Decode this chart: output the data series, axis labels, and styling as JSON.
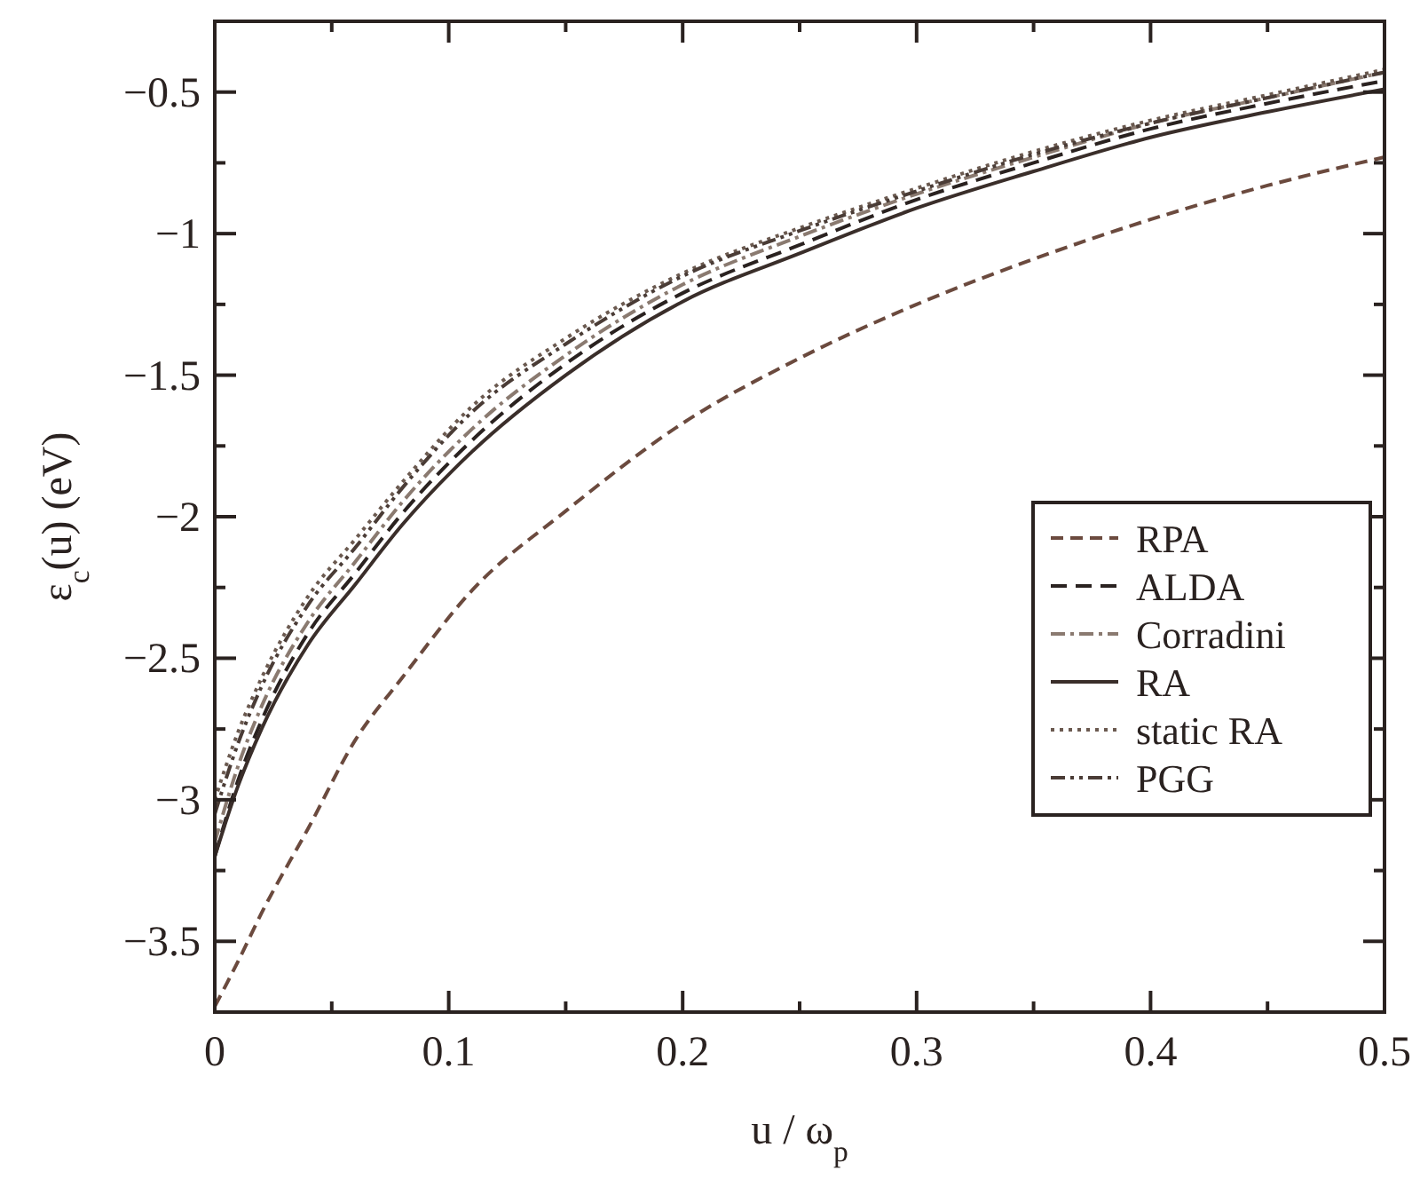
{
  "chart_data": {
    "type": "line",
    "xlabel": "u / ω$_{p}$",
    "ylabel": "ε$_{c}$(u)  (eV)",
    "x": [
      0,
      0.01,
      0.02,
      0.04,
      0.06,
      0.08,
      0.11,
      0.15,
      0.2,
      0.25,
      0.3,
      0.35,
      0.4,
      0.45,
      0.5
    ],
    "xlim": [
      0,
      0.5
    ],
    "ylim": [
      -3.75,
      -0.25
    ],
    "xticks": [
      0,
      {
        "value": 0.05,
        "label": null
      },
      0.1,
      {
        "value": 0.15,
        "label": null
      },
      0.2,
      {
        "value": 0.25,
        "label": null
      },
      0.3,
      {
        "value": 0.35,
        "label": null
      },
      0.4,
      {
        "value": 0.45,
        "label": null
      },
      0.5
    ],
    "yticks": [
      {
        "value": -3.75,
        "label": null
      },
      -3.5,
      {
        "value": -3.25,
        "label": null
      },
      -3,
      {
        "value": -2.75,
        "label": null
      },
      -2.5,
      {
        "value": -2.25,
        "label": null
      },
      -2,
      {
        "value": -1.75,
        "label": null
      },
      -1.5,
      {
        "value": -1.25,
        "label": null
      },
      -1,
      {
        "value": -0.75,
        "label": null
      },
      -0.5,
      {
        "value": -0.25,
        "label": null
      }
    ],
    "legend": "right",
    "grid": false,
    "series": [
      {
        "name": "RPA",
        "color": "#6b4a3e",
        "line_style": "dashed",
        "values": [
          -3.73,
          -3.57,
          -3.4,
          -3.1,
          -2.79,
          -2.57,
          -2.26,
          -1.98,
          -1.67,
          -1.44,
          -1.25,
          -1.09,
          -0.95,
          -0.83,
          -0.73
        ]
      },
      {
        "name": "ALDA",
        "color": "#2a2220",
        "line_style": "dashed",
        "values": [
          -3.2,
          -2.93,
          -2.72,
          -2.41,
          -2.2,
          -1.99,
          -1.73,
          -1.46,
          -1.21,
          -1.04,
          -0.88,
          -0.75,
          -0.63,
          -0.54,
          -0.46
        ]
      },
      {
        "name": "Corradini",
        "color": "#8a7a70",
        "line_style": "dashed",
        "values": [
          -3.15,
          -2.88,
          -2.67,
          -2.37,
          -2.16,
          -1.95,
          -1.69,
          -1.43,
          -1.18,
          -1.01,
          -0.86,
          -0.73,
          -0.61,
          -0.52,
          -0.43
        ]
      },
      {
        "name": "RA",
        "color": "#3a2e2a",
        "line_style": "solid",
        "values": [
          -3.2,
          -2.95,
          -2.75,
          -2.45,
          -2.24,
          -2.03,
          -1.77,
          -1.5,
          -1.24,
          -1.07,
          -0.91,
          -0.78,
          -0.66,
          -0.57,
          -0.49
        ]
      },
      {
        "name": "static RA",
        "color": "#6b5a50",
        "line_style": "dotted",
        "values": [
          -3.0,
          -2.76,
          -2.57,
          -2.28,
          -2.08,
          -1.88,
          -1.61,
          -1.37,
          -1.14,
          -0.98,
          -0.84,
          -0.71,
          -0.6,
          -0.51,
          -0.42
        ]
      },
      {
        "name": "PGG",
        "color": "#4a3c36",
        "line_style": "dashed",
        "values": [
          -3.05,
          -2.8,
          -2.6,
          -2.31,
          -2.11,
          -1.9,
          -1.63,
          -1.39,
          -1.15,
          -0.99,
          -0.85,
          -0.72,
          -0.61,
          -0.52,
          -0.43
        ]
      }
    ]
  }
}
